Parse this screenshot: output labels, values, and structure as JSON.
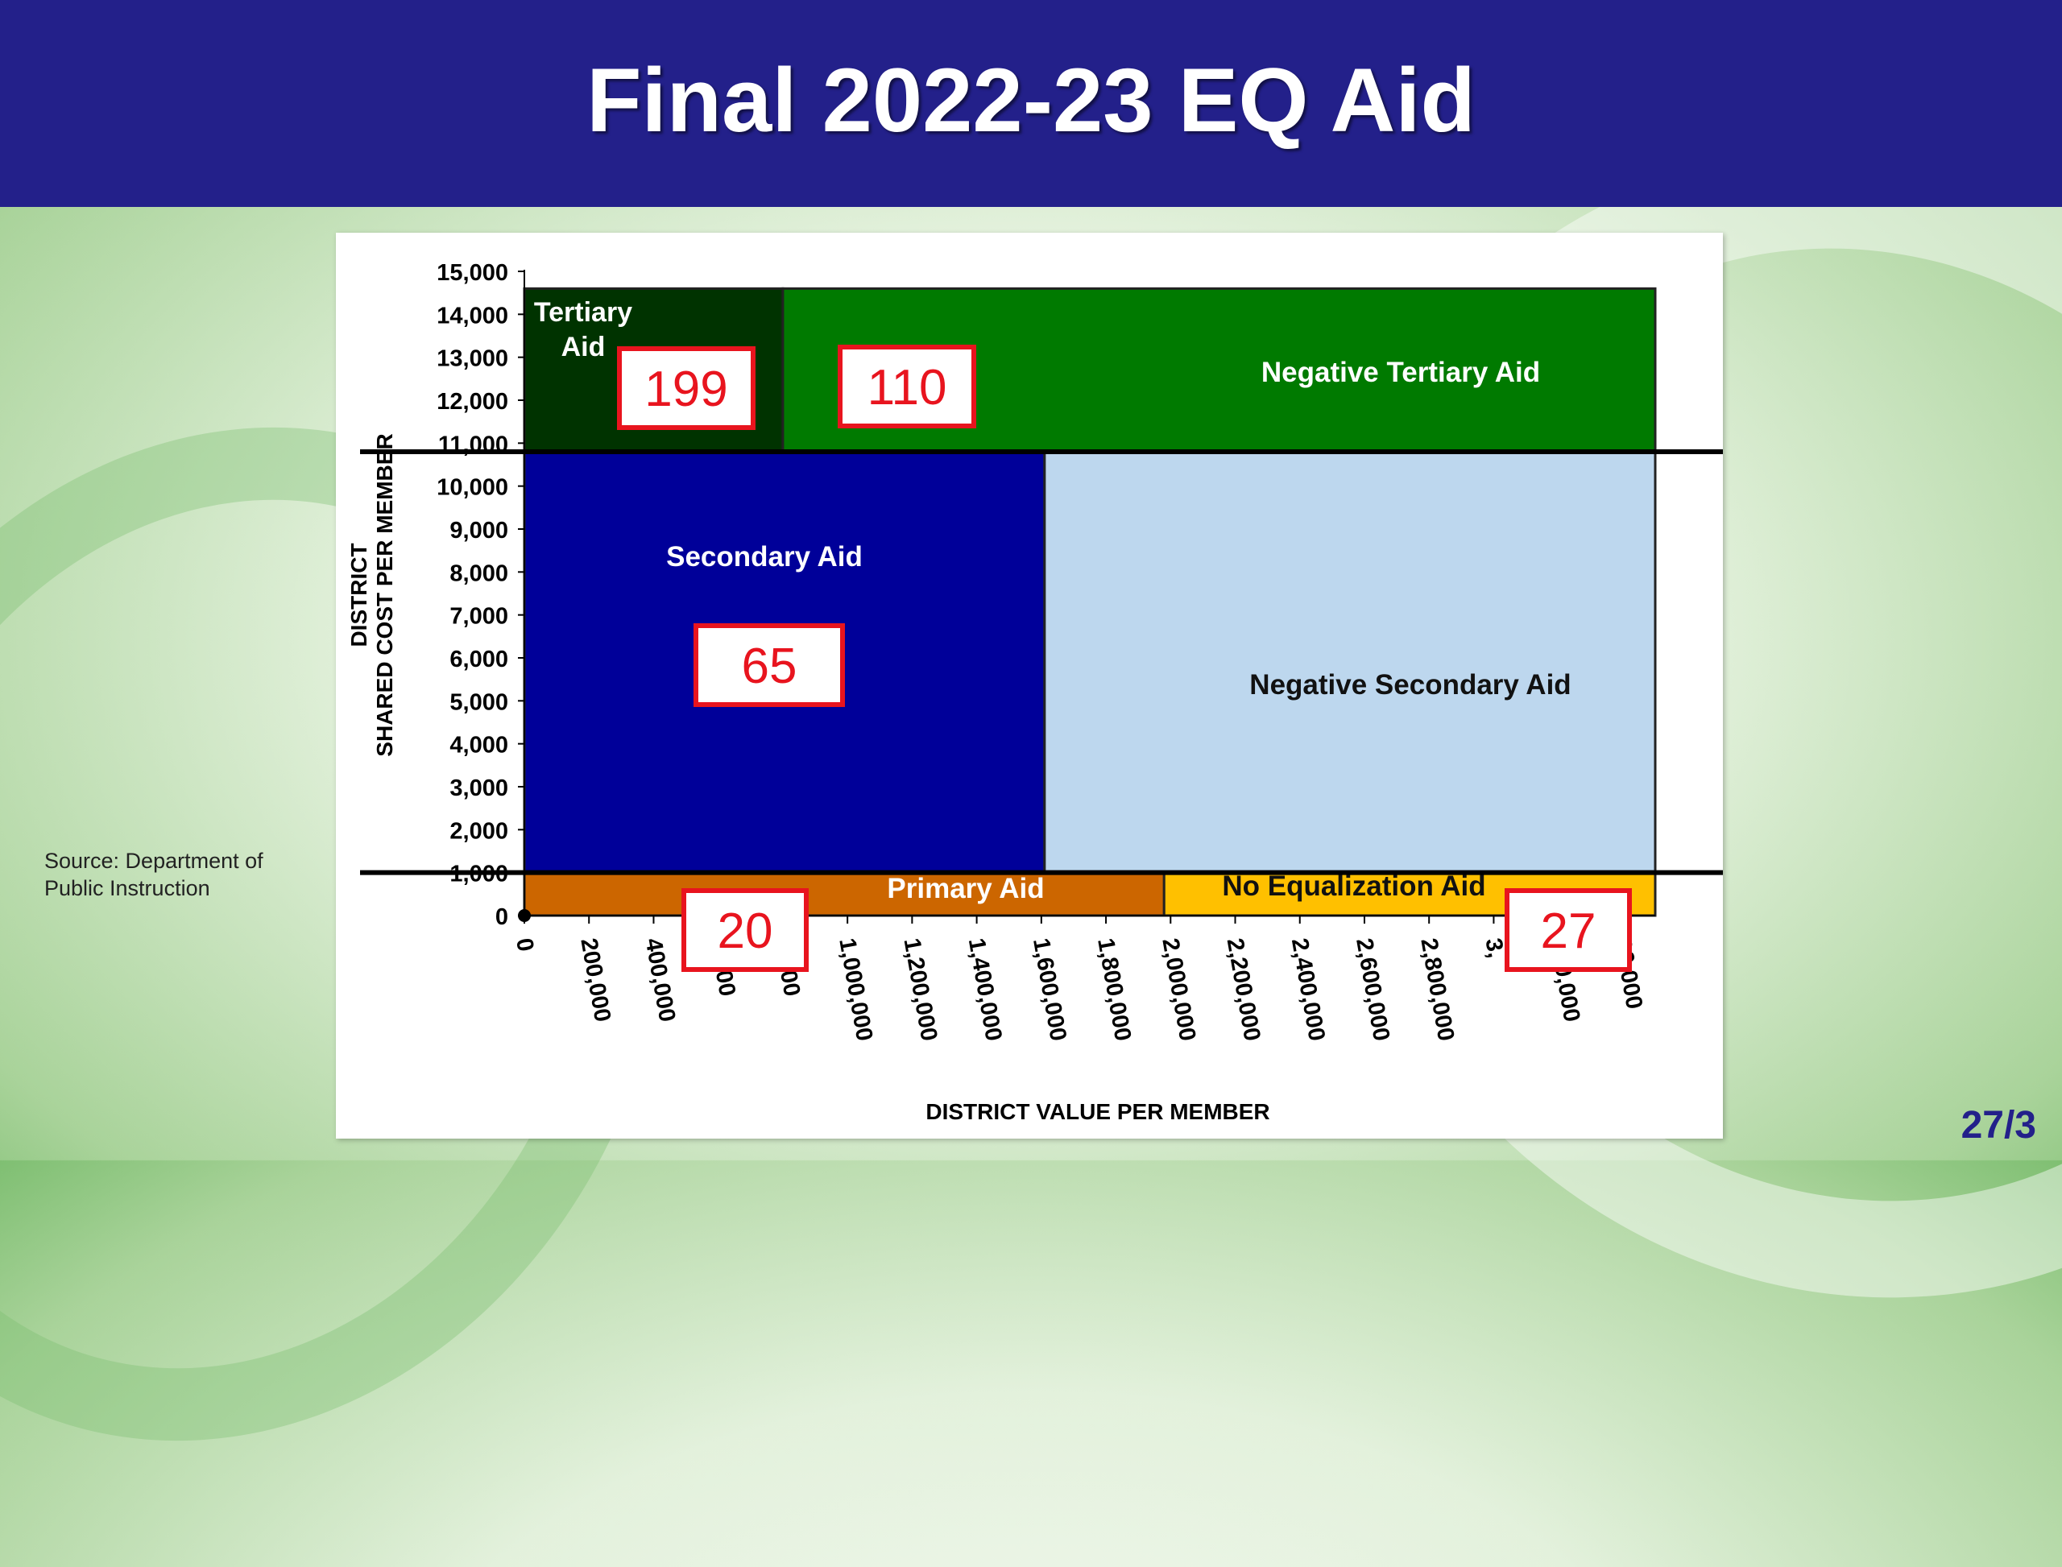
{
  "slide": {
    "title": "Final 2022-23 EQ Aid",
    "source": "Source: Department of Public Instruction",
    "page_number": "27/3"
  },
  "chart_data": {
    "type": "area",
    "xlabel": "DISTRICT VALUE PER MEMBER",
    "ylabel_lines": [
      "DISTRICT",
      "SHARED COST PER MEMBER"
    ],
    "xlim": [
      0,
      3500000
    ],
    "ylim": [
      0,
      15000
    ],
    "x_ticks": [
      0,
      200000,
      400000,
      600000,
      800000,
      1000000,
      1200000,
      1400000,
      1600000,
      1800000,
      2000000,
      2200000,
      2400000,
      2600000,
      2800000,
      3000000,
      3200000,
      3400000
    ],
    "x_tick_labels": [
      "0",
      "200,000",
      "400,000",
      "",
      "",
      "1,000,000",
      "1,200,000",
      "1,400,000",
      "1,600,000",
      "1,800,000",
      "2,000,000",
      "2,200,000",
      "2,400,000",
      "2,600,000",
      "2,800,000",
      "",
      "",
      ""
    ],
    "x_tick_partial": {
      "600000": "0,000",
      "800000": "0,000",
      "3000000": "3,",
      "3200000": "200,000",
      "3400000": "00,000"
    },
    "y_ticks": [
      0,
      1000,
      2000,
      3000,
      4000,
      5000,
      6000,
      7000,
      8000,
      9000,
      10000,
      11000,
      12000,
      13000,
      14000,
      15000
    ],
    "y_tick_labels": [
      "0",
      "1,000",
      "2,000",
      "3,000",
      "4,000",
      "5,000",
      "6,000",
      "7,000",
      "8,000",
      "9,000",
      "10,000",
      "11,000",
      "12,000",
      "13,000",
      "14,000",
      "15,000"
    ],
    "thresholds": {
      "primary_cost_ceiling": 1000,
      "secondary_cost_ceiling": 10800
    },
    "regions": [
      {
        "label": "Tertiary Aid",
        "x0": 0,
        "x1": 800000,
        "y0": 10800,
        "y1": 14600,
        "color": "#003300",
        "text_color": "#ffffff"
      },
      {
        "label": "Negative Tertiary Aid",
        "x0": 800000,
        "x1": 3500000,
        "y0": 10800,
        "y1": 14600,
        "color": "#007a00",
        "text_color": "#ffffff"
      },
      {
        "label": "Secondary Aid",
        "x0": 0,
        "x1": 1610000,
        "y0": 1000,
        "y1": 10800,
        "color": "#000099",
        "text_color": "#ffffff"
      },
      {
        "label": "Negative Secondary Aid",
        "x0": 1610000,
        "x1": 3500000,
        "y0": 1000,
        "y1": 10800,
        "color": "#bdd7ee",
        "text_color": "#111111"
      },
      {
        "label": "Primary Aid",
        "x0": 0,
        "x1": 1980000,
        "y0": 0,
        "y1": 1000,
        "color": "#cc6600",
        "text_color": "#ffffff"
      },
      {
        "label": "No Equalization Aid",
        "x0": 1980000,
        "x1": 3500000,
        "y0": 0,
        "y1": 1000,
        "color": "#ffc000",
        "text_color": "#111111"
      }
    ],
    "district_counts": [
      {
        "value": "199",
        "region": "Tertiary Aid"
      },
      {
        "value": "110",
        "region": "Negative Tertiary Aid"
      },
      {
        "value": "65",
        "region": "Secondary Aid"
      },
      {
        "value": "20",
        "region": "Primary Aid"
      },
      {
        "value": "27",
        "region": "No Equalization Aid"
      }
    ],
    "count_box_color": "#e8141e"
  }
}
